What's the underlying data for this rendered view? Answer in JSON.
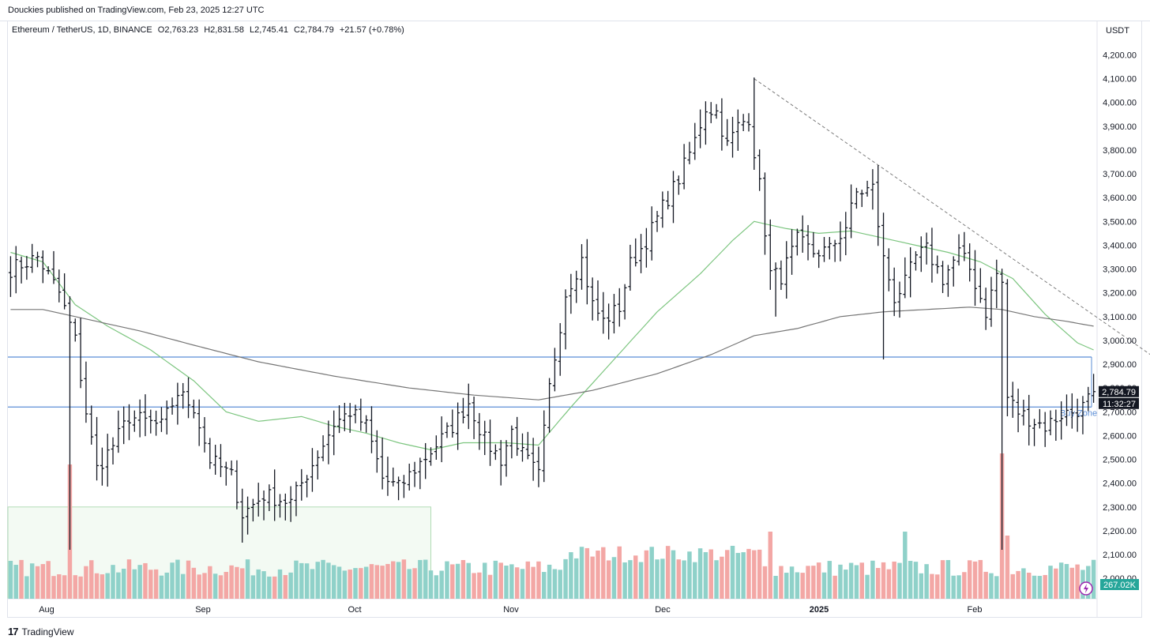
{
  "header": {
    "publisher_line": "Douckies published on TradingView.com, Feb 23, 2025 12:27 UTC"
  },
  "legend": {
    "symbol": "Ethereum / TetherUS, 1D, BINANCE",
    "open": "O2,763.23",
    "high": "H2,831.58",
    "low": "L2,745.41",
    "close": "C2,784.79",
    "change": "+21.57 (+0.78%)"
  },
  "currency_label": "USDT",
  "footer": {
    "brand": "TradingView"
  },
  "colors": {
    "bar": "#131722",
    "vol_up": "#8fd1c9",
    "vol_down": "#f3a7a5",
    "ma_fast": "#7cc57f",
    "ma_slow": "#757575",
    "zone_line": "#5b8ed6",
    "box_fill": "#f3faf3",
    "box_border": "#b2dcb5"
  },
  "chart_data": {
    "type": "ohlc",
    "price_axis": {
      "ticks": [
        "4,200.00",
        "4,100.00",
        "4,000.00",
        "3,900.00",
        "3,800.00",
        "3,700.00",
        "3,600.00",
        "3,500.00",
        "3,400.00",
        "3,300.00",
        "3,200.00",
        "3,100.00",
        "3,000.00",
        "2,900.00",
        "2,800.00",
        "2,700.00",
        "2,600.00",
        "2,500.00",
        "2,400.00",
        "2,300.00",
        "2,200.00",
        "2,100.00",
        "2,000.00"
      ],
      "range": [
        1920,
        4260
      ]
    },
    "time_axis": {
      "labels": [
        "Aug",
        "Sep",
        "Oct",
        "Nov",
        "Dec",
        "2025",
        "Feb"
      ]
    },
    "last_price_label": "2,784.79",
    "countdown_label": "11:32:27",
    "volume_label": "267.02K",
    "buy_zone": {
      "label": "Buy Zone",
      "top": 2930,
      "bottom": 2720
    },
    "trendline": {
      "from": [
        138,
        4100
      ],
      "to": [
        216,
        2870
      ]
    },
    "box": {
      "from_bar": 0,
      "to_bar": 78,
      "top": 2300
    },
    "anchors": [
      [
        0,
        3300
      ],
      [
        5,
        3350
      ],
      [
        9,
        3200
      ],
      [
        12,
        3000
      ],
      [
        14,
        2700
      ],
      [
        16,
        2460
      ],
      [
        19,
        2560
      ],
      [
        22,
        2680
      ],
      [
        28,
        2640
      ],
      [
        31,
        2780
      ],
      [
        34,
        2720
      ],
      [
        37,
        2500
      ],
      [
        41,
        2430
      ],
      [
        43,
        2270
      ],
      [
        47,
        2350
      ],
      [
        52,
        2320
      ],
      [
        56,
        2480
      ],
      [
        60,
        2650
      ],
      [
        63,
        2700
      ],
      [
        66,
        2640
      ],
      [
        69,
        2420
      ],
      [
        72,
        2380
      ],
      [
        75,
        2460
      ],
      [
        79,
        2560
      ],
      [
        82,
        2640
      ],
      [
        85,
        2740
      ],
      [
        88,
        2580
      ],
      [
        91,
        2500
      ],
      [
        93,
        2620
      ],
      [
        95,
        2520
      ],
      [
        98,
        2430
      ],
      [
        100,
        2800
      ],
      [
        103,
        3200
      ],
      [
        106,
        3340
      ],
      [
        108,
        3150
      ],
      [
        110,
        3080
      ],
      [
        113,
        3140
      ],
      [
        115,
        3320
      ],
      [
        118,
        3420
      ],
      [
        121,
        3560
      ],
      [
        124,
        3680
      ],
      [
        127,
        3840
      ],
      [
        129,
        3980
      ],
      [
        131,
        3960
      ],
      [
        133,
        3820
      ],
      [
        135,
        3900
      ],
      [
        137,
        3940
      ],
      [
        139,
        3650
      ],
      [
        141,
        3280
      ],
      [
        143,
        3270
      ],
      [
        146,
        3420
      ],
      [
        149,
        3370
      ],
      [
        152,
        3380
      ],
      [
        155,
        3480
      ],
      [
        157,
        3620
      ],
      [
        160,
        3640
      ],
      [
        162,
        3340
      ],
      [
        164,
        3180
      ],
      [
        166,
        3240
      ],
      [
        168,
        3350
      ],
      [
        170,
        3380
      ],
      [
        173,
        3260
      ],
      [
        176,
        3370
      ],
      [
        178,
        3300
      ],
      [
        181,
        3120
      ],
      [
        183,
        3280
      ],
      [
        184,
        3240
      ],
      [
        185,
        2760
      ],
      [
        187,
        2700
      ],
      [
        190,
        2660
      ],
      [
        192,
        2640
      ],
      [
        195,
        2690
      ],
      [
        197,
        2700
      ],
      [
        199,
        2720
      ],
      [
        201,
        2785
      ]
    ],
    "ma_fast": [
      [
        0,
        3370
      ],
      [
        6,
        3330
      ],
      [
        12,
        3150
      ],
      [
        18,
        3060
      ],
      [
        26,
        2960
      ],
      [
        34,
        2830
      ],
      [
        40,
        2700
      ],
      [
        46,
        2660
      ],
      [
        54,
        2680
      ],
      [
        60,
        2640
      ],
      [
        66,
        2610
      ],
      [
        72,
        2570
      ],
      [
        78,
        2540
      ],
      [
        84,
        2570
      ],
      [
        92,
        2570
      ],
      [
        98,
        2560
      ],
      [
        104,
        2720
      ],
      [
        112,
        2920
      ],
      [
        120,
        3120
      ],
      [
        128,
        3280
      ],
      [
        134,
        3420
      ],
      [
        138,
        3500
      ],
      [
        144,
        3470
      ],
      [
        150,
        3450
      ],
      [
        156,
        3460
      ],
      [
        162,
        3430
      ],
      [
        168,
        3400
      ],
      [
        174,
        3370
      ],
      [
        180,
        3330
      ],
      [
        186,
        3260
      ],
      [
        192,
        3110
      ],
      [
        198,
        2990
      ],
      [
        201,
        2960
      ]
    ],
    "ma_slow": [
      [
        0,
        3130
      ],
      [
        6,
        3130
      ],
      [
        14,
        3090
      ],
      [
        24,
        3040
      ],
      [
        34,
        2980
      ],
      [
        46,
        2910
      ],
      [
        60,
        2850
      ],
      [
        74,
        2800
      ],
      [
        86,
        2770
      ],
      [
        98,
        2750
      ],
      [
        108,
        2790
      ],
      [
        120,
        2860
      ],
      [
        130,
        2940
      ],
      [
        138,
        3020
      ],
      [
        146,
        3050
      ],
      [
        154,
        3100
      ],
      [
        162,
        3120
      ],
      [
        170,
        3130
      ],
      [
        178,
        3140
      ],
      [
        184,
        3130
      ],
      [
        190,
        3100
      ],
      [
        196,
        3080
      ],
      [
        201,
        3060
      ]
    ]
  }
}
